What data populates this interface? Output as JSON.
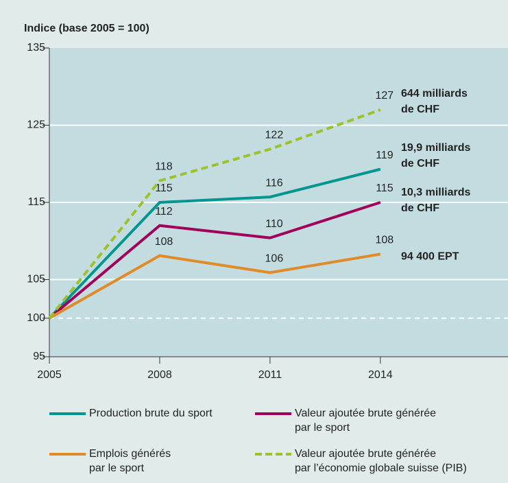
{
  "chart_data": {
    "type": "line",
    "ylabel": "Indice (base 2005 = 100)",
    "x": [
      2005,
      2008,
      2011,
      2014
    ],
    "xlim": [
      2005,
      2017.47
    ],
    "xticks": [
      2005,
      2008,
      2011,
      2014
    ],
    "ylim": [
      95,
      135
    ],
    "yticks": [
      95,
      100,
      105,
      115,
      125,
      135
    ],
    "grid": true,
    "baseline": 100,
    "series": [
      {
        "name": [
          "Production brute du sport"
        ],
        "color": "#00968f",
        "dashed": false,
        "values": [
          100,
          115,
          115.7,
          119.3
        ],
        "value_labels": [
          null,
          "115",
          "116",
          "119"
        ],
        "end_label": [
          "19,9 milliards",
          "de CHF"
        ]
      },
      {
        "name": [
          "Valeur ajoutée brute générée",
          "par le sport"
        ],
        "color": "#a0005a",
        "dashed": false,
        "values": [
          100,
          112,
          110.4,
          115
        ],
        "value_labels": [
          null,
          "112",
          "110",
          "115"
        ],
        "end_label": [
          "10,3 milliards",
          "de CHF"
        ]
      },
      {
        "name": [
          "Emplois générés",
          "par le sport"
        ],
        "color": "#e08a2a",
        "dashed": false,
        "values": [
          100,
          108.1,
          105.9,
          108.3
        ],
        "value_labels": [
          null,
          "108",
          "106",
          "108"
        ],
        "end_label": [
          "94 400 EPT"
        ]
      },
      {
        "name": [
          "Valeur ajoutée brute générée",
          "par l’économie globale suisse (PIB)"
        ],
        "color": "#9dc12a",
        "dashed": true,
        "values": [
          100,
          117.8,
          121.9,
          127
        ],
        "value_labels": [
          null,
          "118",
          "122",
          "127"
        ],
        "end_label": [
          "644 milliards",
          "de CHF"
        ]
      }
    ]
  }
}
